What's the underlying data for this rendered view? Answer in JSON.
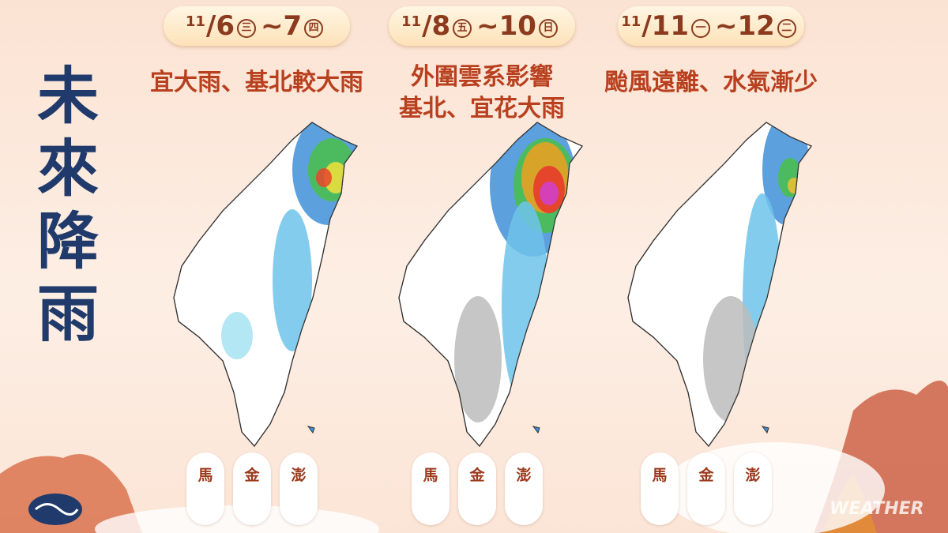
{
  "title": "未來降雨",
  "panels": [
    {
      "date": {
        "start_month": "11",
        "start_day": "/6",
        "start_weekday": "三",
        "end_day": "~7",
        "end_weekday": "四"
      },
      "headline": [
        "宜大雨、基北較大雨"
      ],
      "islands": [
        "馬",
        "金",
        "澎"
      ]
    },
    {
      "date": {
        "start_month": "11",
        "start_day": "/8",
        "start_weekday": "五",
        "end_day": "~10",
        "end_weekday": "日"
      },
      "headline": [
        "外圍雲系影響",
        "基北、宜花大雨"
      ],
      "islands": [
        "馬",
        "金",
        "澎"
      ]
    },
    {
      "date": {
        "start_month": "11",
        "start_day": "/11",
        "start_weekday": "一",
        "end_day": "~12",
        "end_weekday": "二"
      },
      "headline": [
        "颱風遠離、水氣漸少"
      ],
      "islands": [
        "馬",
        "金",
        "澎"
      ]
    }
  ],
  "watermark": "WEATHER"
}
